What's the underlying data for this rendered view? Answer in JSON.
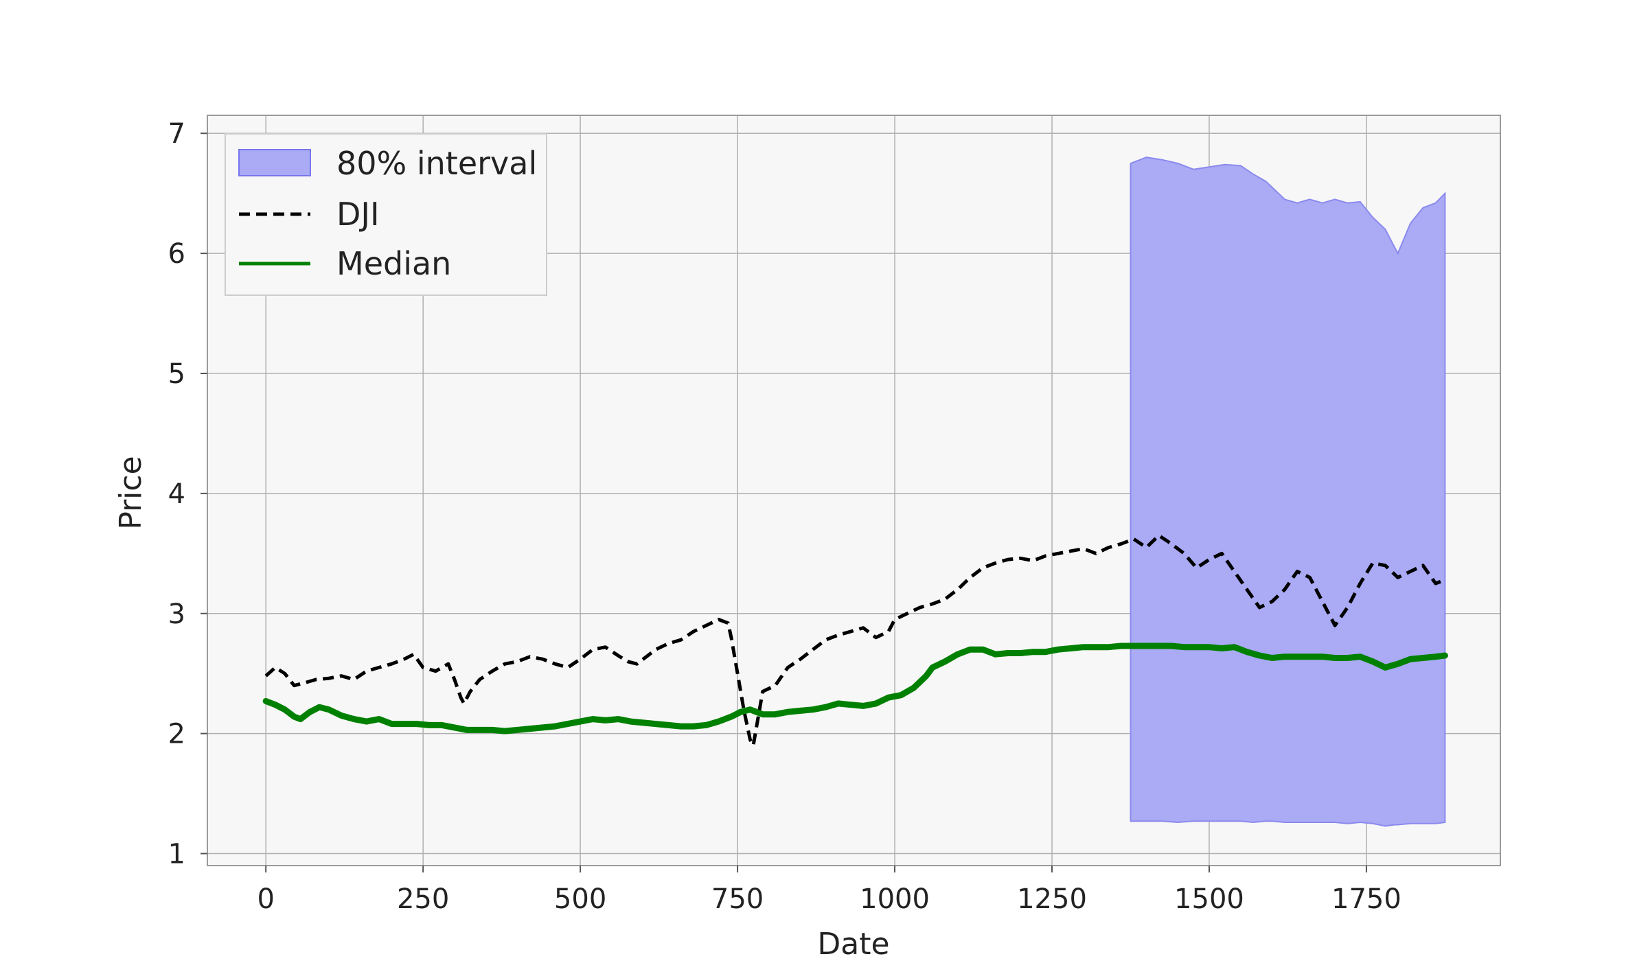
{
  "chart_data": {
    "type": "line",
    "title": "",
    "xlabel": "Date",
    "ylabel": "Price",
    "xlim": [
      -93,
      1963
    ],
    "ylim": [
      0.9,
      7.15
    ],
    "x_ticks": [
      0,
      250,
      500,
      750,
      1000,
      1250,
      1500,
      1750
    ],
    "y_ticks": [
      1,
      2,
      3,
      4,
      5,
      6,
      7
    ],
    "grid": true,
    "legend_position": "top-left",
    "legend": [
      "80% interval",
      "DJI",
      "Median"
    ],
    "series": [
      {
        "name": "DJI",
        "style": "dashed",
        "color": "#000000",
        "x": [
          0,
          15,
          30,
          45,
          60,
          80,
          100,
          120,
          140,
          160,
          180,
          200,
          220,
          235,
          250,
          270,
          290,
          300,
          310,
          315,
          325,
          340,
          360,
          380,
          400,
          420,
          440,
          460,
          480,
          500,
          520,
          540,
          560,
          575,
          590,
          600,
          620,
          640,
          660,
          680,
          700,
          720,
          735,
          740,
          750,
          760,
          770,
          775,
          790,
          810,
          830,
          850,
          870,
          890,
          910,
          930,
          950,
          970,
          990,
          1000,
          1020,
          1040,
          1060,
          1080,
          1100,
          1120,
          1140,
          1160,
          1180,
          1200,
          1220,
          1240,
          1260,
          1280,
          1300,
          1320,
          1340,
          1360,
          1380,
          1400,
          1420,
          1440,
          1460,
          1480,
          1500,
          1520,
          1540,
          1560,
          1580,
          1600,
          1620,
          1640,
          1660,
          1680,
          1700,
          1720,
          1740,
          1760,
          1780,
          1800,
          1820,
          1840,
          1860,
          1875
        ],
        "values": [
          2.48,
          2.55,
          2.5,
          2.4,
          2.42,
          2.45,
          2.46,
          2.48,
          2.45,
          2.52,
          2.55,
          2.58,
          2.62,
          2.66,
          2.55,
          2.52,
          2.58,
          2.45,
          2.3,
          2.25,
          2.35,
          2.45,
          2.52,
          2.58,
          2.6,
          2.64,
          2.62,
          2.58,
          2.55,
          2.62,
          2.7,
          2.72,
          2.65,
          2.6,
          2.58,
          2.62,
          2.7,
          2.75,
          2.78,
          2.85,
          2.9,
          2.95,
          2.92,
          2.8,
          2.5,
          2.2,
          1.95,
          1.9,
          2.35,
          2.4,
          2.55,
          2.62,
          2.7,
          2.78,
          2.82,
          2.85,
          2.88,
          2.8,
          2.85,
          2.95,
          3.0,
          3.05,
          3.08,
          3.12,
          3.2,
          3.3,
          3.38,
          3.42,
          3.45,
          3.46,
          3.44,
          3.48,
          3.5,
          3.52,
          3.54,
          3.5,
          3.55,
          3.58,
          3.62,
          3.55,
          3.65,
          3.58,
          3.5,
          3.38,
          3.45,
          3.5,
          3.35,
          3.2,
          3.05,
          3.1,
          3.2,
          3.35,
          3.3,
          3.1,
          2.9,
          3.05,
          3.25,
          3.42,
          3.4,
          3.3,
          3.35,
          3.4,
          3.25,
          3.28
        ]
      },
      {
        "name": "Median",
        "style": "solid",
        "color": "#008000",
        "x": [
          0,
          15,
          30,
          45,
          55,
          70,
          85,
          100,
          120,
          140,
          160,
          180,
          200,
          220,
          240,
          260,
          280,
          300,
          320,
          340,
          360,
          380,
          400,
          420,
          440,
          460,
          480,
          500,
          520,
          540,
          560,
          580,
          600,
          620,
          640,
          660,
          680,
          700,
          720,
          740,
          755,
          770,
          790,
          810,
          830,
          850,
          870,
          890,
          910,
          930,
          950,
          970,
          990,
          1010,
          1030,
          1050,
          1060,
          1080,
          1100,
          1120,
          1140,
          1160,
          1180,
          1200,
          1220,
          1240,
          1260,
          1280,
          1300,
          1320,
          1340,
          1360,
          1380,
          1400,
          1420,
          1440,
          1460,
          1480,
          1500,
          1520,
          1540,
          1560,
          1580,
          1600,
          1620,
          1640,
          1660,
          1680,
          1700,
          1720,
          1740,
          1760,
          1780,
          1800,
          1820,
          1840,
          1860,
          1875
        ],
        "values": [
          2.27,
          2.24,
          2.2,
          2.14,
          2.12,
          2.18,
          2.22,
          2.2,
          2.15,
          2.12,
          2.1,
          2.12,
          2.08,
          2.08,
          2.08,
          2.07,
          2.07,
          2.05,
          2.03,
          2.03,
          2.03,
          2.02,
          2.03,
          2.04,
          2.05,
          2.06,
          2.08,
          2.1,
          2.12,
          2.11,
          2.12,
          2.1,
          2.09,
          2.08,
          2.07,
          2.06,
          2.06,
          2.07,
          2.1,
          2.14,
          2.18,
          2.2,
          2.16,
          2.16,
          2.18,
          2.19,
          2.2,
          2.22,
          2.25,
          2.24,
          2.23,
          2.25,
          2.3,
          2.32,
          2.38,
          2.48,
          2.55,
          2.6,
          2.66,
          2.7,
          2.7,
          2.66,
          2.67,
          2.67,
          2.68,
          2.68,
          2.7,
          2.71,
          2.72,
          2.72,
          2.72,
          2.73,
          2.73,
          2.73,
          2.73,
          2.73,
          2.72,
          2.72,
          2.72,
          2.71,
          2.72,
          2.68,
          2.65,
          2.63,
          2.64,
          2.64,
          2.64,
          2.64,
          2.63,
          2.63,
          2.64,
          2.6,
          2.55,
          2.58,
          2.62,
          2.63,
          2.64,
          2.65
        ]
      }
    ],
    "interval": {
      "name": "80% interval",
      "color": "#aaaaf5",
      "x": [
        1375,
        1400,
        1425,
        1450,
        1475,
        1500,
        1525,
        1550,
        1570,
        1590,
        1600,
        1620,
        1640,
        1660,
        1680,
        1700,
        1720,
        1740,
        1760,
        1780,
        1795,
        1800,
        1820,
        1840,
        1860,
        1875
      ],
      "upper": [
        6.75,
        6.8,
        6.78,
        6.75,
        6.7,
        6.72,
        6.74,
        6.73,
        6.66,
        6.6,
        6.55,
        6.45,
        6.42,
        6.45,
        6.42,
        6.45,
        6.42,
        6.43,
        6.3,
        6.2,
        6.05,
        6.0,
        6.25,
        6.38,
        6.42,
        6.5
      ],
      "lower": [
        1.27,
        1.27,
        1.27,
        1.26,
        1.27,
        1.27,
        1.27,
        1.27,
        1.26,
        1.27,
        1.27,
        1.26,
        1.26,
        1.26,
        1.26,
        1.26,
        1.25,
        1.26,
        1.25,
        1.23,
        1.24,
        1.24,
        1.25,
        1.25,
        1.25,
        1.26
      ]
    }
  }
}
